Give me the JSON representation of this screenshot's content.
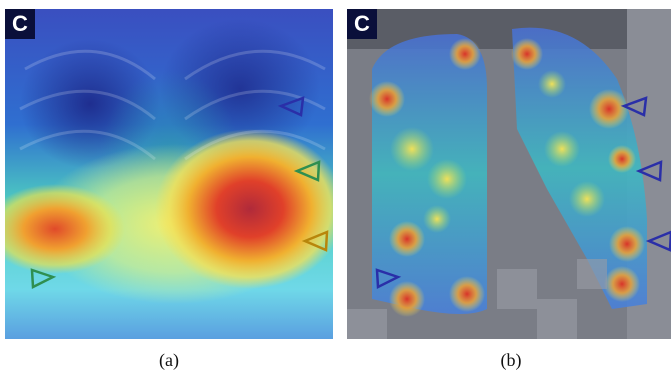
{
  "panels": [
    {
      "id": "a",
      "corner_label": "C",
      "caption": "(a)",
      "description_kind": "chest-xray-heatmap-smooth"
    },
    {
      "id": "b",
      "corner_label": "C",
      "caption": "(b)",
      "description_kind": "chest-xray-heatmap-patchy"
    }
  ],
  "colors": {
    "heat_low": "#2a2fa8",
    "heat_mid": "#38d0c8",
    "heat_high": "#e8e23a",
    "heat_peak": "#d8342a",
    "marker_blue": "#2a2fa8",
    "marker_green": "#2f8f50",
    "marker_orange": "#b8860b"
  },
  "icons": [
    "triangle-marker-icon"
  ]
}
